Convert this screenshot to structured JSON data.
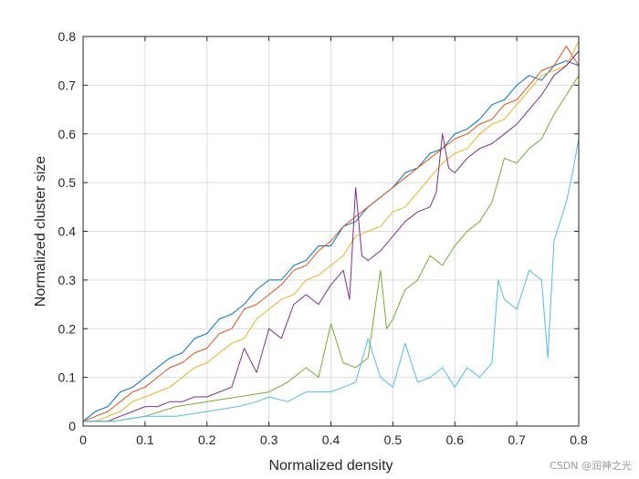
{
  "chart_data": {
    "type": "line",
    "title": "",
    "xlabel": "Normalized density",
    "ylabel": "Normalized cluster size",
    "xlim": [
      0,
      0.8
    ],
    "ylim": [
      0,
      0.8
    ],
    "x_ticks": [
      0,
      0.1,
      0.2,
      0.3,
      0.4,
      0.5,
      0.6,
      0.7,
      0.8
    ],
    "x_tick_labels": [
      "0",
      "0.1",
      "0.2",
      "0.3",
      "0.4",
      "0.5",
      "0.6",
      "0.7",
      "0.8"
    ],
    "y_ticks": [
      0,
      0.1,
      0.2,
      0.3,
      0.4,
      0.5,
      0.6,
      0.7,
      0.8
    ],
    "y_tick_labels": [
      "0",
      "0.1",
      "0.2",
      "0.3",
      "0.4",
      "0.5",
      "0.6",
      "0.7",
      "0.8"
    ],
    "grid": true,
    "box": true,
    "series": [
      {
        "color": "#0072BD",
        "x": [
          0,
          0.02,
          0.04,
          0.06,
          0.08,
          0.1,
          0.12,
          0.14,
          0.16,
          0.18,
          0.2,
          0.22,
          0.24,
          0.26,
          0.28,
          0.3,
          0.32,
          0.34,
          0.36,
          0.38,
          0.4,
          0.42,
          0.44,
          0.46,
          0.48,
          0.5,
          0.52,
          0.54,
          0.56,
          0.58,
          0.6,
          0.62,
          0.64,
          0.66,
          0.68,
          0.7,
          0.72,
          0.74,
          0.76,
          0.78,
          0.8
        ],
        "y": [
          0.01,
          0.03,
          0.04,
          0.07,
          0.08,
          0.1,
          0.12,
          0.14,
          0.15,
          0.18,
          0.19,
          0.22,
          0.23,
          0.25,
          0.28,
          0.3,
          0.3,
          0.33,
          0.34,
          0.37,
          0.37,
          0.41,
          0.42,
          0.45,
          0.47,
          0.49,
          0.52,
          0.53,
          0.56,
          0.57,
          0.6,
          0.61,
          0.63,
          0.66,
          0.67,
          0.7,
          0.72,
          0.71,
          0.74,
          0.75,
          0.74
        ]
      },
      {
        "color": "#D95319",
        "x": [
          0,
          0.02,
          0.04,
          0.06,
          0.08,
          0.1,
          0.12,
          0.14,
          0.16,
          0.18,
          0.2,
          0.22,
          0.24,
          0.26,
          0.28,
          0.3,
          0.32,
          0.34,
          0.36,
          0.38,
          0.4,
          0.42,
          0.44,
          0.46,
          0.48,
          0.5,
          0.52,
          0.54,
          0.56,
          0.58,
          0.6,
          0.62,
          0.64,
          0.66,
          0.68,
          0.7,
          0.72,
          0.74,
          0.76,
          0.78,
          0.8
        ],
        "y": [
          0.01,
          0.02,
          0.03,
          0.05,
          0.07,
          0.08,
          0.1,
          0.12,
          0.13,
          0.15,
          0.16,
          0.19,
          0.2,
          0.24,
          0.25,
          0.27,
          0.29,
          0.32,
          0.33,
          0.36,
          0.38,
          0.41,
          0.43,
          0.45,
          0.47,
          0.49,
          0.51,
          0.53,
          0.55,
          0.57,
          0.59,
          0.6,
          0.62,
          0.63,
          0.66,
          0.67,
          0.7,
          0.73,
          0.74,
          0.78,
          0.74
        ]
      },
      {
        "color": "#EDB120",
        "x": [
          0,
          0.02,
          0.04,
          0.06,
          0.08,
          0.1,
          0.12,
          0.14,
          0.16,
          0.18,
          0.2,
          0.22,
          0.24,
          0.26,
          0.28,
          0.3,
          0.32,
          0.34,
          0.36,
          0.38,
          0.4,
          0.42,
          0.44,
          0.46,
          0.48,
          0.5,
          0.52,
          0.54,
          0.56,
          0.58,
          0.6,
          0.62,
          0.64,
          0.66,
          0.68,
          0.7,
          0.72,
          0.74,
          0.76,
          0.78,
          0.8
        ],
        "y": [
          0.01,
          0.01,
          0.02,
          0.03,
          0.05,
          0.06,
          0.07,
          0.08,
          0.1,
          0.12,
          0.13,
          0.15,
          0.17,
          0.18,
          0.22,
          0.24,
          0.26,
          0.27,
          0.3,
          0.31,
          0.33,
          0.35,
          0.39,
          0.4,
          0.41,
          0.44,
          0.45,
          0.48,
          0.51,
          0.54,
          0.56,
          0.57,
          0.6,
          0.62,
          0.63,
          0.66,
          0.69,
          0.72,
          0.73,
          0.74,
          0.79
        ]
      },
      {
        "color": "#7E2F8E",
        "x": [
          0,
          0.02,
          0.04,
          0.06,
          0.08,
          0.1,
          0.12,
          0.14,
          0.16,
          0.18,
          0.2,
          0.22,
          0.24,
          0.26,
          0.28,
          0.3,
          0.32,
          0.34,
          0.36,
          0.38,
          0.4,
          0.42,
          0.43,
          0.44,
          0.45,
          0.46,
          0.48,
          0.5,
          0.52,
          0.54,
          0.56,
          0.57,
          0.58,
          0.59,
          0.6,
          0.62,
          0.64,
          0.66,
          0.68,
          0.7,
          0.72,
          0.74,
          0.76,
          0.78,
          0.8
        ],
        "y": [
          0.01,
          0.01,
          0.01,
          0.02,
          0.03,
          0.04,
          0.04,
          0.05,
          0.05,
          0.06,
          0.06,
          0.07,
          0.08,
          0.16,
          0.11,
          0.2,
          0.18,
          0.25,
          0.27,
          0.25,
          0.29,
          0.32,
          0.26,
          0.49,
          0.35,
          0.34,
          0.36,
          0.39,
          0.42,
          0.44,
          0.45,
          0.48,
          0.6,
          0.53,
          0.52,
          0.55,
          0.57,
          0.58,
          0.6,
          0.62,
          0.65,
          0.68,
          0.72,
          0.74,
          0.77
        ]
      },
      {
        "color": "#77AC30",
        "x": [
          0,
          0.05,
          0.1,
          0.15,
          0.2,
          0.25,
          0.3,
          0.33,
          0.36,
          0.38,
          0.4,
          0.42,
          0.44,
          0.46,
          0.48,
          0.49,
          0.5,
          0.52,
          0.54,
          0.56,
          0.58,
          0.6,
          0.62,
          0.64,
          0.66,
          0.68,
          0.7,
          0.72,
          0.74,
          0.76,
          0.78,
          0.8
        ],
        "y": [
          0.01,
          0.01,
          0.02,
          0.04,
          0.05,
          0.06,
          0.07,
          0.09,
          0.12,
          0.1,
          0.21,
          0.13,
          0.12,
          0.14,
          0.32,
          0.2,
          0.22,
          0.28,
          0.3,
          0.35,
          0.33,
          0.37,
          0.4,
          0.42,
          0.46,
          0.55,
          0.54,
          0.57,
          0.59,
          0.64,
          0.68,
          0.72
        ]
      },
      {
        "color": "#4DBEEE",
        "x": [
          0,
          0.05,
          0.1,
          0.15,
          0.2,
          0.25,
          0.28,
          0.3,
          0.33,
          0.36,
          0.4,
          0.42,
          0.44,
          0.46,
          0.48,
          0.5,
          0.52,
          0.54,
          0.56,
          0.58,
          0.6,
          0.62,
          0.64,
          0.66,
          0.67,
          0.68,
          0.7,
          0.72,
          0.74,
          0.75,
          0.76,
          0.78,
          0.79,
          0.8
        ],
        "y": [
          0.01,
          0.01,
          0.02,
          0.02,
          0.03,
          0.04,
          0.05,
          0.06,
          0.05,
          0.07,
          0.07,
          0.08,
          0.09,
          0.18,
          0.1,
          0.08,
          0.17,
          0.09,
          0.1,
          0.12,
          0.08,
          0.12,
          0.1,
          0.13,
          0.3,
          0.26,
          0.24,
          0.32,
          0.3,
          0.14,
          0.38,
          0.46,
          0.52,
          0.59
        ]
      }
    ]
  },
  "watermark": "CSDN @润神之光"
}
